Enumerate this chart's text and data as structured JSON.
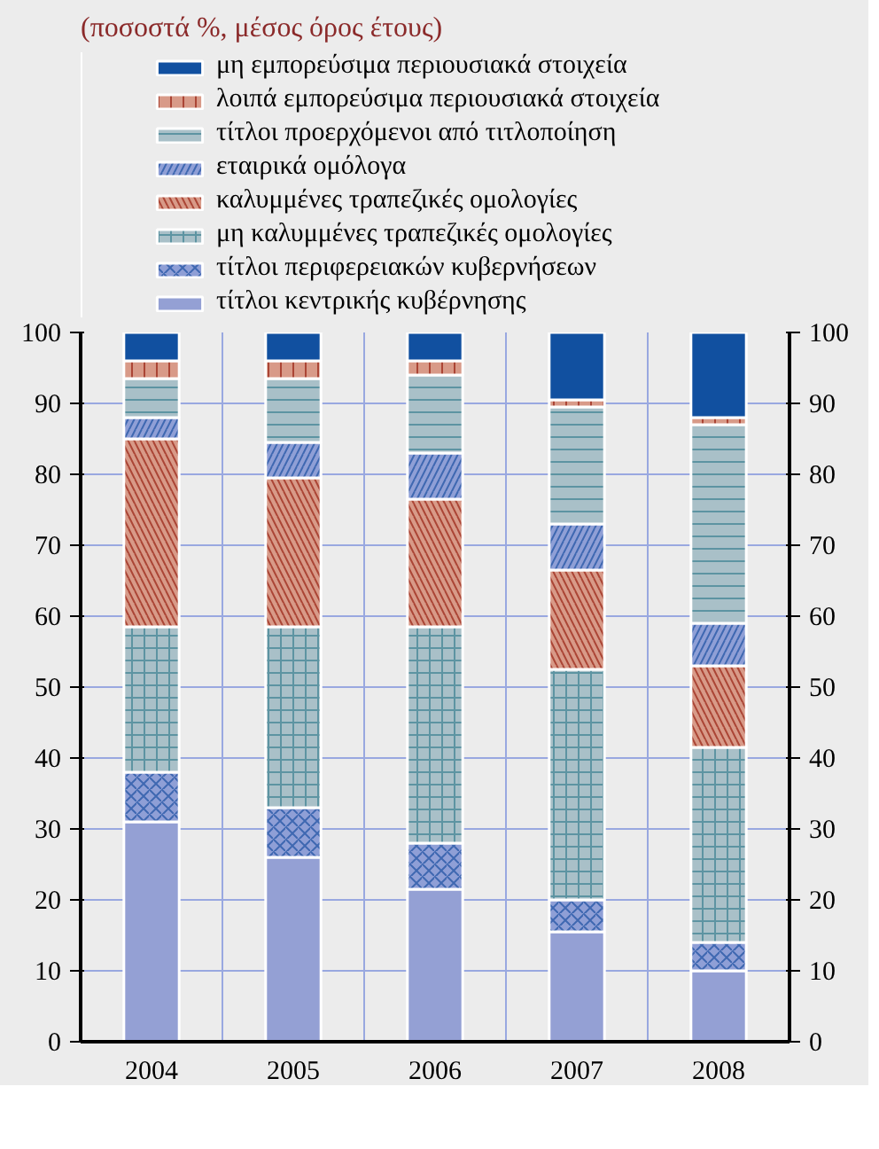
{
  "chart_data": {
    "type": "bar",
    "stacked": true,
    "title": "(ποσοστά %, μέσος όρος έτους)",
    "categories": [
      "2004",
      "2005",
      "2006",
      "2007",
      "2008"
    ],
    "series": [
      {
        "name": "τίτλοι κεντρικής κυβέρνησης",
        "color": "#94a0d4",
        "values": [
          31,
          26,
          21.5,
          15.5,
          10
        ]
      },
      {
        "name": "τίτλοι περιφερειακών κυβερνήσεων",
        "color": "#8f9fd6",
        "values": [
          7,
          7,
          6.5,
          4.5,
          4
        ]
      },
      {
        "name": "μη καλυμμένες τραπεζικές ομολογίες",
        "color": "#a9c0c8",
        "values": [
          20.5,
          25.5,
          30.5,
          32.5,
          27.5
        ]
      },
      {
        "name": "καλυμμένες τραπεζικές ομολογίες",
        "color": "#d89a88",
        "values": [
          26.5,
          21,
          18,
          14,
          11.5
        ]
      },
      {
        "name": "εταιρικά ομόλογα",
        "color": "#8f9fd6",
        "values": [
          3,
          5,
          6.5,
          6.5,
          6
        ]
      },
      {
        "name": "τίτλοι προερχόμενοι από τιτλοποίηση",
        "color": "#a9c0c8",
        "values": [
          5.5,
          9,
          11,
          16.5,
          28
        ]
      },
      {
        "name": "λοιπά εμπορεύσιμα περιουσιακά στοιχεία",
        "color": "#d89a88",
        "values": [
          2.5,
          2.5,
          2,
          1,
          1
        ]
      },
      {
        "name": "μη εμπορεύσιμα περιουσιακά στοιχεία",
        "color": "#1150a0",
        "values": [
          4,
          4,
          4,
          9.5,
          12
        ]
      }
    ],
    "ylim": [
      0,
      100
    ],
    "yticks": [
      0,
      10,
      20,
      30,
      40,
      50,
      60,
      70,
      80,
      90,
      100
    ],
    "y2lim": [
      0,
      100
    ],
    "y2ticks": [
      0,
      10,
      20,
      30,
      40,
      50,
      60,
      70,
      80,
      90,
      100
    ],
    "grid": true,
    "legend": "top"
  }
}
